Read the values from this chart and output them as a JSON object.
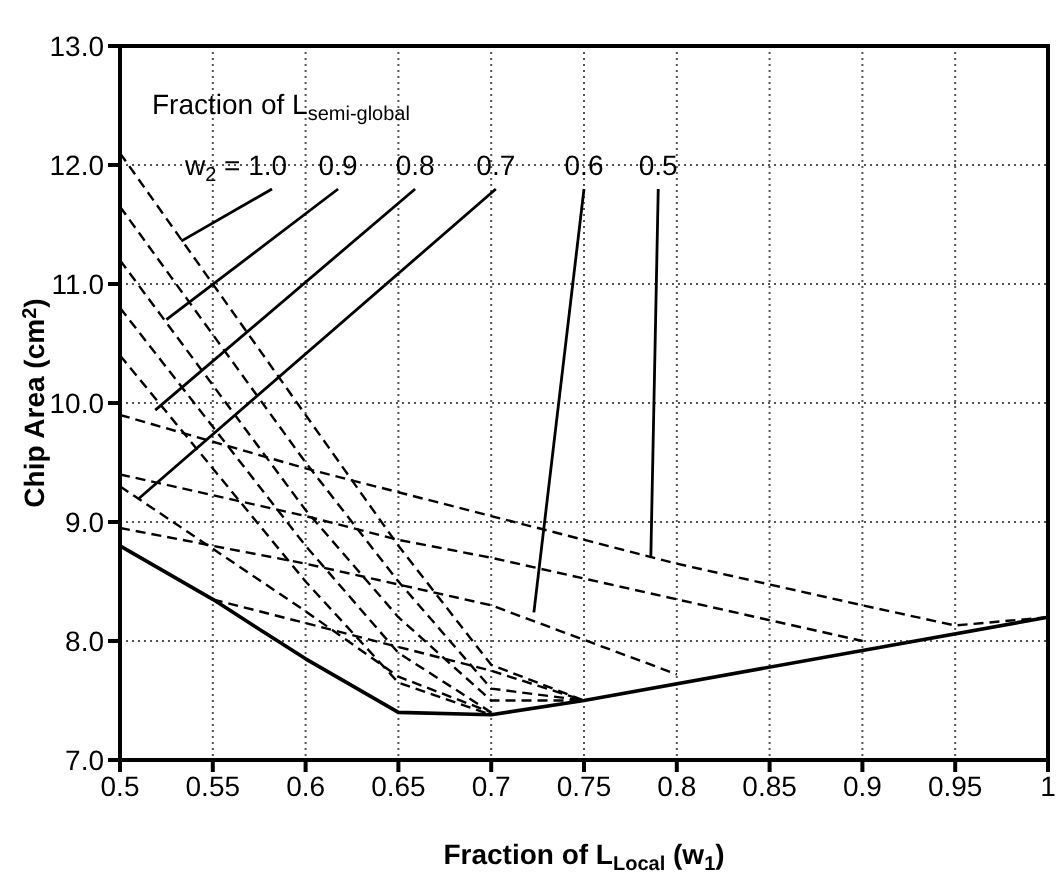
{
  "chart_data": {
    "type": "line",
    "xlabel": "Fraction of L$_{Local}$ (w$_{1}$)",
    "ylabel": "Chip Area (cm$^{2}$)",
    "xlim": [
      0.5,
      1
    ],
    "xticks": [
      0.5,
      0.55,
      0.6,
      0.65,
      0.7,
      0.75,
      0.8,
      0.85,
      0.9,
      0.95,
      1
    ],
    "ylim": [
      7,
      13
    ],
    "yticks": [
      {
        "value": 7,
        "label": "7.0"
      },
      {
        "value": 8,
        "label": "8.0"
      },
      {
        "value": 9,
        "label": "9.0"
      },
      {
        "value": 10,
        "label": "10.0"
      },
      {
        "value": 11,
        "label": "11.0"
      },
      {
        "value": 12,
        "label": "12.0"
      },
      {
        "value": 13,
        "label": "13.0"
      }
    ],
    "grid": true,
    "annotations": [
      "Fraction of L$_{semi-global}$",
      {
        "text": "w$_{2}$ = 1.0",
        "x": 0.533,
        "y": 11.36
      },
      {
        "text": "0.9",
        "x": 0.525,
        "y": 10.7
      },
      {
        "text": "0.8",
        "x": 0.519,
        "y": 9.94
      },
      {
        "text": "0.7",
        "x": 0.51,
        "y": 9.195
      },
      {
        "text": "0.6",
        "x": 0.723,
        "y": 8.24
      },
      {
        "text": "0.5",
        "x": 0.786,
        "y": 8.7
      }
    ],
    "series": [
      {
        "color": "#000000",
        "line_style": "solid",
        "x": [
          0.5,
          0.55,
          0.6,
          0.65,
          0.7,
          0.75,
          1.0
        ],
        "values": [
          8.8,
          8.35,
          7.85,
          7.4,
          7.38,
          7.5,
          8.2
        ]
      },
      {
        "color": "#000000",
        "line_style": "dashed",
        "x": [
          0.5,
          0.6,
          0.65,
          0.7,
          0.75
        ],
        "values": [
          12.1,
          9.9,
          8.8,
          7.8,
          7.5
        ]
      },
      {
        "color": "#000000",
        "line_style": "dashed",
        "x": [
          0.5,
          0.6,
          0.65,
          0.7,
          0.75
        ],
        "values": [
          11.65,
          9.5,
          8.5,
          7.6,
          7.5
        ]
      },
      {
        "color": "#000000",
        "line_style": "dashed",
        "x": [
          0.5,
          0.6,
          0.65,
          0.7,
          0.75
        ],
        "values": [
          11.2,
          9.1,
          8.2,
          7.5,
          7.5
        ]
      },
      {
        "color": "#000000",
        "line_style": "dashed",
        "x": [
          0.5,
          0.6,
          0.65,
          0.7
        ],
        "values": [
          10.8,
          8.8,
          7.9,
          7.4
        ]
      },
      {
        "color": "#000000",
        "line_style": "dashed",
        "x": [
          0.5,
          0.6,
          0.65,
          0.7
        ],
        "values": [
          10.4,
          8.5,
          7.65,
          7.38
        ]
      },
      {
        "color": "#000000",
        "line_style": "dashed",
        "x": [
          0.5,
          0.6,
          0.65,
          0.7
        ],
        "values": [
          9.3,
          8.25,
          7.7,
          7.4
        ]
      },
      {
        "color": "#000000",
        "line_style": "dashed",
        "x": [
          0.55,
          0.65,
          0.7,
          0.75
        ],
        "values": [
          8.35,
          7.95,
          7.75,
          7.5
        ]
      },
      {
        "color": "#000000",
        "line_style": "dashed",
        "x": [
          0.5,
          0.6,
          0.65,
          0.7,
          0.8,
          0.9,
          0.95,
          1.0
        ],
        "values": [
          9.9,
          9.45,
          9.25,
          9.05,
          8.65,
          8.3,
          8.13,
          8.2
        ]
      },
      {
        "color": "#000000",
        "line_style": "dashed",
        "x": [
          0.5,
          0.6,
          0.65,
          0.7,
          0.8,
          0.9
        ],
        "values": [
          9.4,
          9.05,
          8.85,
          8.7,
          8.35,
          8.0
        ]
      },
      {
        "color": "#000000",
        "line_style": "dashed",
        "x": [
          0.5,
          0.6,
          0.7,
          0.8
        ],
        "values": [
          8.95,
          8.65,
          8.3,
          7.72
        ]
      }
    ]
  }
}
